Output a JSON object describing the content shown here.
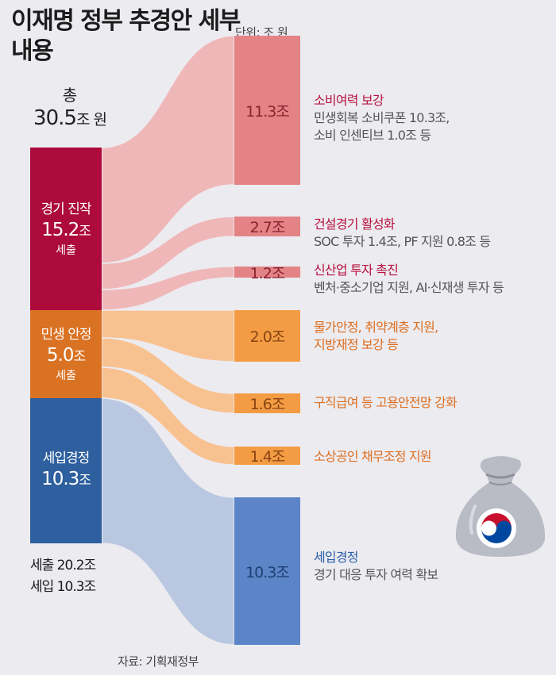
{
  "title": "이재명 정부 추경안 세부 내용",
  "unit": "단위: 조 원",
  "total": {
    "label": "총",
    "value": "30.5",
    "unit": "조 원"
  },
  "sources": [
    {
      "name": "경기 진작",
      "value": "15.2",
      "unit": "조",
      "sub": "세출",
      "color": "#ad0b3c"
    },
    {
      "name": "민생 안정",
      "value": "5.0",
      "unit": "조",
      "sub": "세출",
      "color": "#da7224"
    },
    {
      "name": "세입경정",
      "value": "10.3",
      "unit": "조",
      "sub": "",
      "color": "#2e5f9e"
    }
  ],
  "summary": {
    "line1": "세출 20.2조",
    "line2": "세입 10.3조"
  },
  "targets": [
    {
      "value": "11.3조",
      "title": "소비여력 보강",
      "desc1": "민생회복 소비쿠폰 10.3조,",
      "desc2": "소비 인센티브 1.0조 등",
      "color": "#e38386",
      "flow": "#f0b7b8",
      "source": 0
    },
    {
      "value": "2.7조",
      "title": "건설경기 활성화",
      "desc1": "SOC 투자 1.4조, PF 지원 0.8조 등",
      "desc2": "",
      "color": "#e38386",
      "flow": "#f0b7b8",
      "source": 0
    },
    {
      "value": "1.2조",
      "title": "신산업 투자 촉진",
      "desc1": "벤처·중소기업 지원, AI·신재생 투자 등",
      "desc2": "",
      "color": "#e38386",
      "flow": "#f0b7b8",
      "source": 0
    },
    {
      "value": "2.0조",
      "title": "물가안정, 취약계층 지원,",
      "desc1": "",
      "desc2": "",
      "title2": "지방재정 보강 등",
      "color": "#f39c44",
      "flow": "#f8c190",
      "source": 1
    },
    {
      "value": "1.6조",
      "title": "구직급여 등 고용안전망 강화",
      "desc1": "",
      "desc2": "",
      "color": "#f39c44",
      "flow": "#f8c190",
      "source": 1
    },
    {
      "value": "1.4조",
      "title": "소상공인 채무조정 지원",
      "desc1": "",
      "desc2": "",
      "color": "#f39c44",
      "flow": "#f8c190",
      "source": 1
    },
    {
      "value": "10.3조",
      "title": "세입경정",
      "desc1": "경기 대응 투자 여력 확보",
      "desc2": "",
      "color": "#5b85c7",
      "flow": "#b9c8e0",
      "source": 2
    }
  ],
  "chart_data": {
    "type": "sankey",
    "unit": "조 원",
    "total": 30.5,
    "sources": [
      {
        "name": "경기 진작 (세출)",
        "value": 15.2
      },
      {
        "name": "민생 안정 (세출)",
        "value": 5.0
      },
      {
        "name": "세입경정",
        "value": 10.3
      }
    ],
    "links": [
      {
        "from": "경기 진작 (세출)",
        "to": "소비여력 보강",
        "value": 11.3
      },
      {
        "from": "경기 진작 (세출)",
        "to": "건설경기 활성화",
        "value": 2.7
      },
      {
        "from": "경기 진작 (세출)",
        "to": "신산업 투자 촉진",
        "value": 1.2
      },
      {
        "from": "민생 안정 (세출)",
        "to": "물가안정, 취약계층 지원, 지방재정 보강 등",
        "value": 2.0
      },
      {
        "from": "민생 안정 (세출)",
        "to": "구직급여 등 고용안전망 강화",
        "value": 1.6
      },
      {
        "from": "민생 안정 (세출)",
        "to": "소상공인 채무조정 지원",
        "value": 1.4
      },
      {
        "from": "세입경정",
        "to": "세입경정",
        "value": 10.3
      }
    ]
  },
  "source_note": "자료: 기획재정부",
  "icons": {
    "bag": "money-bag-icon",
    "emblem": "taegeuk-icon"
  }
}
